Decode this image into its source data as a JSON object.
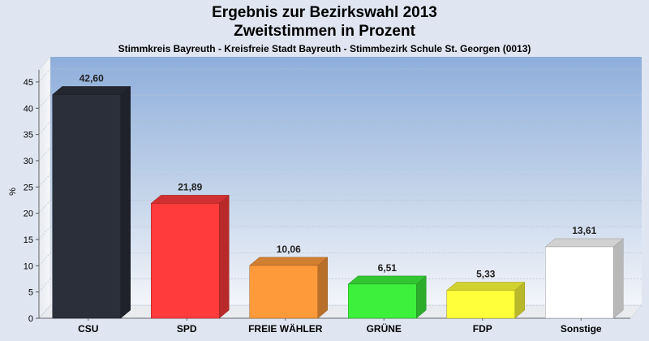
{
  "title": "Ergebnis zur Bezirkswahl 2013",
  "subtitle": "Zweitstimmen in Prozent",
  "caption": "Stimmkreis Bayreuth - Kreisfreie Stadt Bayreuth - Stimmbezirk Schule St. Georgen (0013)",
  "chart_data": {
    "type": "bar",
    "title": "Ergebnis zur Bezirkswahl 2013",
    "subtitle": "Zweitstimmen in Prozent",
    "xlabel": "",
    "ylabel": "%",
    "ylim": [
      0,
      47
    ],
    "yticks": [
      0,
      5,
      10,
      15,
      20,
      25,
      30,
      35,
      40,
      45
    ],
    "grid": true,
    "categories": [
      "CSU",
      "SPD",
      "FREIE WÄHLER",
      "GRÜNE",
      "FDP",
      "Sonstige"
    ],
    "values": [
      42.6,
      21.89,
      10.06,
      6.51,
      5.33,
      13.61
    ],
    "value_labels": [
      "42,60",
      "21,89",
      "10,06",
      "6,51",
      "5,33",
      "13,61"
    ],
    "colors": [
      "#2b2f3a",
      "#ff3b3b",
      "#ff9a3a",
      "#3cf03c",
      "#ffff3a",
      "#ffffff"
    ]
  }
}
